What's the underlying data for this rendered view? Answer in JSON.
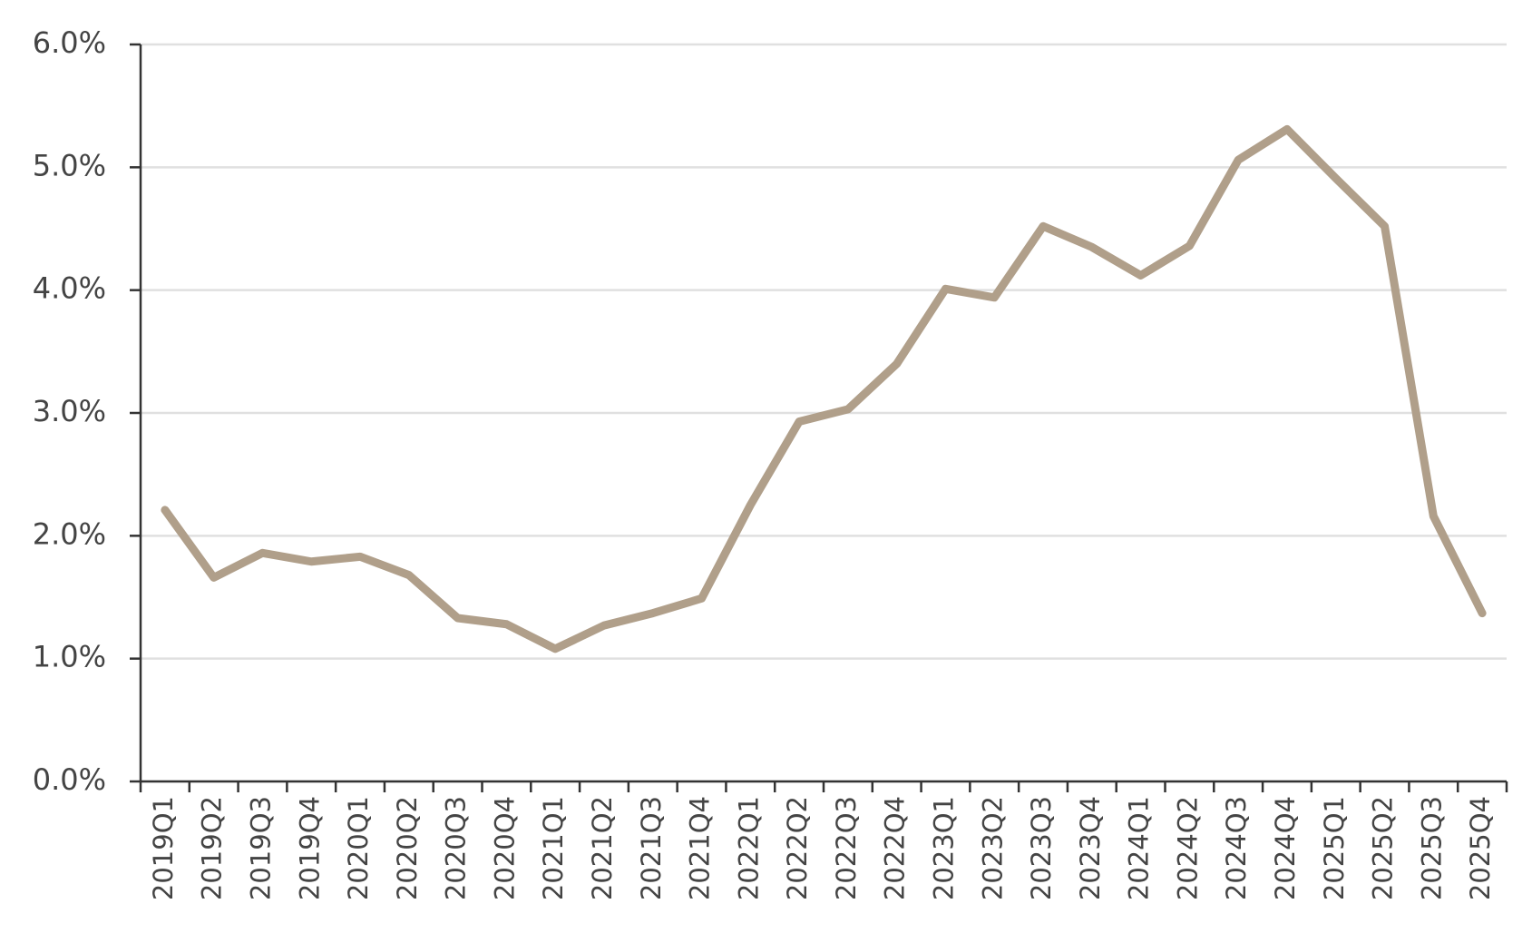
{
  "chart_data": {
    "type": "line",
    "categories": [
      "2019Q1",
      "2019Q2",
      "2019Q3",
      "2019Q4",
      "2020Q1",
      "2020Q2",
      "2020Q3",
      "2020Q4",
      "2021Q1",
      "2021Q2",
      "2021Q3",
      "2021Q4",
      "2022Q1",
      "2022Q2",
      "2022Q3",
      "2022Q4",
      "2023Q1",
      "2023Q2",
      "2023Q3",
      "2023Q4",
      "2024Q1",
      "2024Q2",
      "2024Q3",
      "2024Q4",
      "2025Q1",
      "2025Q2",
      "2025Q3",
      "2025Q4"
    ],
    "series": [
      {
        "color": "#b09f8a",
        "values": [
          2.21,
          1.66,
          1.86,
          1.79,
          1.83,
          1.68,
          1.33,
          1.28,
          1.08,
          1.27,
          1.37,
          1.49,
          2.25,
          2.93,
          3.03,
          3.4,
          4.01,
          3.94,
          4.52,
          4.35,
          4.12,
          4.36,
          5.06,
          5.31,
          4.91,
          4.52,
          2.16,
          1.37
        ]
      }
    ],
    "ylim": [
      0,
      6
    ],
    "yticks": [
      {
        "value": 0,
        "label": "0.0%"
      },
      {
        "value": 1,
        "label": "1.0%"
      },
      {
        "value": 2,
        "label": "2.0%"
      },
      {
        "value": 3,
        "label": "3.0%"
      },
      {
        "value": 4,
        "label": "4.0%"
      },
      {
        "value": 5,
        "label": "5.0%"
      },
      {
        "value": 6,
        "label": "6.0%"
      }
    ],
    "grid": true
  }
}
